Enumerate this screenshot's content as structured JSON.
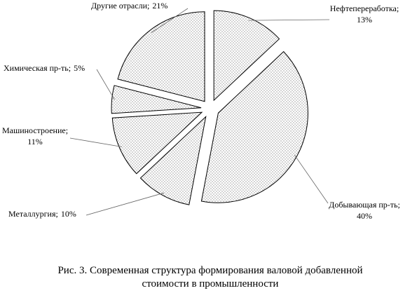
{
  "chart_data": {
    "type": "pie",
    "categories": [
      "Нефтепереработка;",
      "Добывающая пр-ть;",
      "Металлургия;",
      "Машиностроение;",
      "Химическая пр-ть;",
      "Другие отрасли;"
    ],
    "values": [
      13,
      40,
      10,
      11,
      5,
      21
    ],
    "value_labels": [
      "13%",
      "40%",
      "10%",
      "11%",
      "5%",
      "21%"
    ],
    "caption": [
      "Рис. 3. Современная структура формирования валовой добавленной",
      "стоимости в промышленности"
    ]
  }
}
